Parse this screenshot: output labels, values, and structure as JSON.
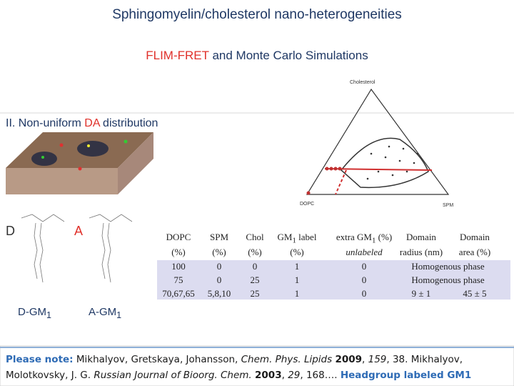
{
  "header": {
    "title": "Sphingomyelin/cholesterol nano-heterogeneities",
    "subtitle": {
      "highlight": "FLIM-FRET",
      "rest": " and Monte Carlo Simulations"
    }
  },
  "section": {
    "prefix": "II. Non-uniform ",
    "highlight": "DA",
    "suffix": " distribution"
  },
  "molecules": {
    "donor": "D",
    "acceptor": "A",
    "donor_label": {
      "base": "D-GM",
      "sub": "1"
    },
    "acceptor_label": {
      "base": "A-GM",
      "sub": "1"
    }
  },
  "phase_diagram": {
    "top": "Cholesterol",
    "left": "DOPC",
    "right": "SPM"
  },
  "table": {
    "headers": [
      {
        "line1": "DOPC",
        "line2": "(%)"
      },
      {
        "line1": "SPM",
        "line2": "(%)"
      },
      {
        "line1": "Chol",
        "line2": "(%)"
      },
      {
        "pre": "GM",
        "sub": "1",
        "post": " label",
        "line2": "(%)"
      },
      {
        "pre": "extra GM",
        "sub": "1",
        "post": " (%)",
        "line2": "unlabeled"
      },
      {
        "line1": "Domain",
        "line2": "radius (nm)"
      },
      {
        "line1": "Domain",
        "line2": "area (%)"
      }
    ],
    "rows": [
      [
        "100",
        "0",
        "0",
        "1",
        "0",
        "Homogenous phase"
      ],
      [
        "75",
        "0",
        "25",
        "1",
        "0",
        "Homogenous phase"
      ],
      [
        "70,67,65",
        "5,8,10",
        "25",
        "1",
        "0",
        "9 ± 1",
        "45 ± 5"
      ]
    ]
  },
  "note": [
    "Please note:",
    " Mikhalyov, Gretskaya, Johansson, ",
    "Chem. Phys. Lipids ",
    "2009",
    ", ",
    "159",
    ", 38. Mikhalyov, Molotkovsky, J. G. ",
    "Russian Journal of Bioorg. Chem. ",
    "2003",
    ", ",
    "29",
    ", 168…. ",
    "Headgroup labeled GM1"
  ]
}
